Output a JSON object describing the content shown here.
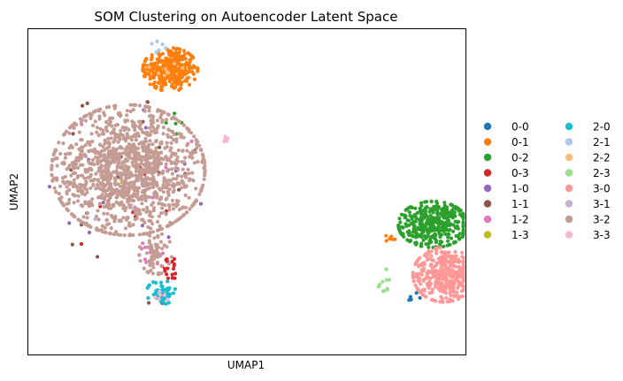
{
  "chart_data": {
    "type": "scatter",
    "title": "SOM Clustering on Autoencoder Latent Space",
    "xlabel": "UMAP1",
    "ylabel": "UMAP2",
    "xlim": [
      -2,
      22
    ],
    "ylim": [
      -2,
      22
    ],
    "grid": false,
    "legend_position": "right, two columns",
    "series": [
      {
        "name": "0-0",
        "color": "#1f77b4",
        "clusters": [
          {
            "cx": 18.9,
            "cy": 2.3,
            "sx": 0.3,
            "sy": 0.2,
            "n": 6
          }
        ]
      },
      {
        "name": "0-1",
        "color": "#ff7f0e",
        "clusters": [
          {
            "cx": 5.8,
            "cy": 19.0,
            "sx": 0.75,
            "sy": 0.8,
            "n": 320
          },
          {
            "cx": 17.8,
            "cy": 6.5,
            "sx": 0.2,
            "sy": 0.15,
            "n": 6
          }
        ]
      },
      {
        "name": "0-2",
        "color": "#2ca02c",
        "clusters": [
          {
            "cx": 20.2,
            "cy": 7.6,
            "sx": 0.95,
            "sy": 0.85,
            "n": 380
          },
          {
            "cx": 6.0,
            "cy": 14.8,
            "sx": 0.4,
            "sy": 0.6,
            "n": 6
          }
        ]
      },
      {
        "name": "0-3",
        "color": "#d62728",
        "clusters": [
          {
            "cx": 5.8,
            "cy": 4.3,
            "sx": 0.35,
            "sy": 0.4,
            "n": 18
          },
          {
            "cx": 3.5,
            "cy": 10.0,
            "sx": 2.0,
            "sy": 2.5,
            "n": 10
          }
        ]
      },
      {
        "name": "1-0",
        "color": "#9467bd",
        "clusters": [
          {
            "cx": 3.5,
            "cy": 11.5,
            "sx": 2.2,
            "sy": 2.8,
            "n": 22
          }
        ]
      },
      {
        "name": "1-1",
        "color": "#8c564b",
        "clusters": [
          {
            "cx": 3.0,
            "cy": 11.0,
            "sx": 2.2,
            "sy": 3.0,
            "n": 26
          },
          {
            "cx": 5.2,
            "cy": 1.8,
            "sx": 0.4,
            "sy": 0.3,
            "n": 5
          }
        ]
      },
      {
        "name": "1-2",
        "color": "#e377c2",
        "clusters": [
          {
            "cx": 4.6,
            "cy": 5.5,
            "sx": 0.4,
            "sy": 0.5,
            "n": 12
          },
          {
            "cx": 3.5,
            "cy": 12.0,
            "sx": 2.0,
            "sy": 2.5,
            "n": 6
          }
        ]
      },
      {
        "name": "1-3",
        "color": "#bcbd22",
        "clusters": [
          {
            "cx": 3.0,
            "cy": 10.0,
            "sx": 2.0,
            "sy": 2.5,
            "n": 4
          }
        ]
      },
      {
        "name": "2-0",
        "color": "#17becf",
        "clusters": [
          {
            "cx": 5.3,
            "cy": 2.6,
            "sx": 0.4,
            "sy": 0.45,
            "n": 55
          }
        ]
      },
      {
        "name": "2-1",
        "color": "#aec7e8",
        "clusters": [
          {
            "cx": 5.7,
            "cy": 20.5,
            "sx": 0.6,
            "sy": 0.5,
            "n": 6
          }
        ]
      },
      {
        "name": "2-2",
        "color": "#ffbb78",
        "clusters": [
          {
            "cx": 5.6,
            "cy": 19.2,
            "sx": 0.5,
            "sy": 0.6,
            "n": 8
          }
        ]
      },
      {
        "name": "2-3",
        "color": "#98df8a",
        "clusters": [
          {
            "cx": 17.5,
            "cy": 3.4,
            "sx": 0.15,
            "sy": 0.5,
            "n": 10
          }
        ]
      },
      {
        "name": "3-0",
        "color": "#ff9896",
        "clusters": [
          {
            "cx": 20.8,
            "cy": 3.9,
            "sx": 0.85,
            "sy": 1.0,
            "n": 380
          }
        ]
      },
      {
        "name": "3-1",
        "color": "#c5b0d5",
        "clusters": [
          {
            "cx": 3.5,
            "cy": 11.0,
            "sx": 2.0,
            "sy": 2.5,
            "n": 4
          }
        ]
      },
      {
        "name": "3-2",
        "color": "#c49c94",
        "clusters": [
          {
            "cx": 3.5,
            "cy": 11.6,
            "sx": 2.1,
            "sy": 2.4,
            "n": 1300
          },
          {
            "cx": 5.0,
            "cy": 5.5,
            "sx": 0.45,
            "sy": 0.8,
            "n": 60
          }
        ]
      },
      {
        "name": "3-3",
        "color": "#f7b6d2",
        "clusters": [
          {
            "cx": 8.8,
            "cy": 13.8,
            "sx": 0.15,
            "sy": 0.3,
            "n": 6
          },
          {
            "cx": 5.3,
            "cy": 2.4,
            "sx": 0.3,
            "sy": 0.3,
            "n": 6
          }
        ]
      }
    ]
  }
}
